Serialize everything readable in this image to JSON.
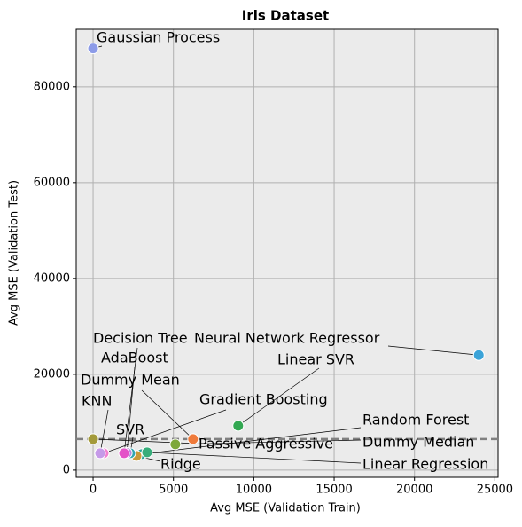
{
  "chart_data": {
    "type": "scatter",
    "title": "Iris Dataset",
    "x_label": "Avg MSE (Validation Train)",
    "y_label": "Avg MSE (Validation Test)",
    "xlim": [
      -1050,
      25200
    ],
    "ylim": [
      -1500,
      92000
    ],
    "xticks": [
      0,
      5000,
      10000,
      15000,
      20000,
      25000
    ],
    "yticks": [
      0,
      20000,
      40000,
      60000,
      80000
    ],
    "grid": true,
    "series": [
      {
        "name": "Gaussian Process",
        "color": "#8c9be8",
        "x": [
          0
        ],
        "values": [
          88000
        ]
      },
      {
        "name": "Neural Network Regressor",
        "color": "#3ba3d8",
        "x": [
          24000
        ],
        "values": [
          24000
        ]
      },
      {
        "name": "Linear SVR",
        "color": "#33a852",
        "x": [
          9030
        ],
        "values": [
          9260
        ]
      },
      {
        "name": "Gradient Boosting",
        "color": "#f37fd0",
        "x": [
          660
        ],
        "values": [
          3520
        ]
      },
      {
        "name": "Random Forest",
        "color": "#2aa39a",
        "x": [
          3030
        ],
        "values": [
          3330
        ]
      },
      {
        "name": "Dummy Median",
        "color": "#7ea83a",
        "x": [
          5120
        ],
        "values": [
          5370
        ]
      },
      {
        "name": "Linear Regression",
        "color": "#36ad7a",
        "x": [
          3360
        ],
        "values": [
          3700
        ]
      },
      {
        "name": "Ridge",
        "color": "#c99a3a",
        "x": [
          2700
        ],
        "values": [
          2960
        ]
      },
      {
        "name": "Passive Aggressive",
        "color": "#a39a3a",
        "x": [
          0
        ],
        "values": [
          6480
        ]
      },
      {
        "name": "SVR",
        "color": "#31a5b0",
        "x": [
          2310
        ],
        "values": [
          3520
        ]
      },
      {
        "name": "KNN",
        "color": "#c59ae8",
        "x": [
          440
        ],
        "values": [
          3520
        ]
      },
      {
        "name": "Dummy Mean",
        "color": "#ef7a3a",
        "x": [
          6220
        ],
        "values": [
          6480
        ]
      },
      {
        "name": "AdaBoost",
        "color": "#b88ae0",
        "x": [
          2100
        ],
        "values": [
          3600
        ]
      },
      {
        "name": "Decision Tree",
        "color": "#e453c8",
        "x": [
          1930
        ],
        "values": [
          3520
        ]
      }
    ]
  }
}
